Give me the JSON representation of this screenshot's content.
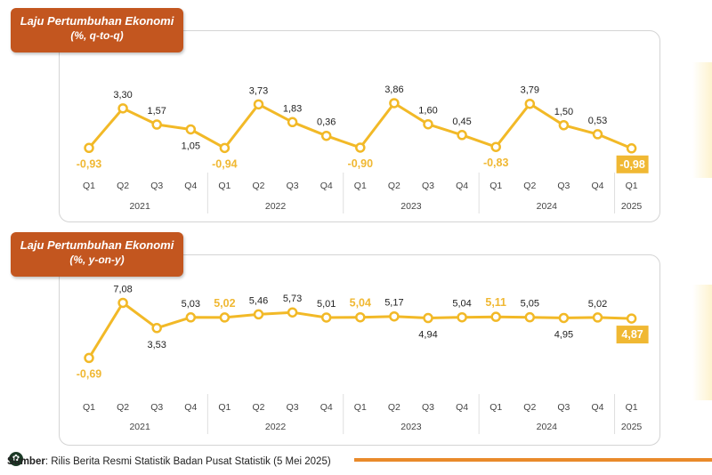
{
  "colors": {
    "line": "#f2b927",
    "highlight_fill": "#f0b833",
    "badge_bg": "#c3561f",
    "accent_line": "#e98a2a"
  },
  "source": {
    "label": "Sumber",
    "text": ": Rilis Berita Resmi Statistik Badan Pusat Statistik (5 Mei 2025)"
  },
  "chart_data": [
    {
      "type": "line",
      "title": "Laju Pertumbuhan Ekonomi",
      "subtitle": "(%, q-to-q)",
      "categories": [
        "Q1",
        "Q2",
        "Q3",
        "Q4",
        "Q1",
        "Q2",
        "Q3",
        "Q4",
        "Q1",
        "Q2",
        "Q3",
        "Q4",
        "Q1",
        "Q2",
        "Q3",
        "Q4",
        "Q1"
      ],
      "years": [
        "2021",
        "2022",
        "2023",
        "2024",
        "2025"
      ],
      "values": [
        -0.93,
        3.3,
        1.57,
        1.05,
        -0.94,
        3.73,
        1.83,
        0.36,
        -0.9,
        3.86,
        1.6,
        0.45,
        -0.83,
        3.79,
        1.5,
        0.53,
        -0.98
      ],
      "value_labels": [
        "-0,93",
        "3,30",
        "1,57",
        "1,05",
        "-0,94",
        "3,73",
        "1,83",
        "0,36",
        "-0,90",
        "3,86",
        "1,60",
        "0,45",
        "-0,83",
        "3,79",
        "1,50",
        "0,53",
        "-0,98"
      ],
      "label_pos": [
        "below",
        "above",
        "above",
        "below",
        "below",
        "above",
        "above",
        "above",
        "below",
        "above",
        "above",
        "above",
        "below",
        "above",
        "above",
        "above",
        "below"
      ],
      "label_style": [
        "orange",
        "normal",
        "normal",
        "normal",
        "orange",
        "normal",
        "normal",
        "normal",
        "orange",
        "normal",
        "normal",
        "normal",
        "orange",
        "normal",
        "normal",
        "normal",
        "box"
      ],
      "grid": false
    },
    {
      "type": "line",
      "title": "Laju Pertumbuhan Ekonomi",
      "subtitle": "(%, y-on-y)",
      "categories": [
        "Q1",
        "Q2",
        "Q3",
        "Q4",
        "Q1",
        "Q2",
        "Q3",
        "Q4",
        "Q1",
        "Q2",
        "Q3",
        "Q4",
        "Q1",
        "Q2",
        "Q3",
        "Q4",
        "Q1"
      ],
      "years": [
        "2021",
        "2022",
        "2023",
        "2024",
        "2025"
      ],
      "values": [
        -0.69,
        7.08,
        3.53,
        5.03,
        5.02,
        5.46,
        5.73,
        5.01,
        5.04,
        5.17,
        4.94,
        5.04,
        5.11,
        5.05,
        4.95,
        5.02,
        4.87
      ],
      "value_labels": [
        "-0,69",
        "7,08",
        "3,53",
        "5,03",
        "5,02",
        "5,46",
        "5,73",
        "5,01",
        "5,04",
        "5,17",
        "4,94",
        "5,04",
        "5,11",
        "5,05",
        "4,95",
        "5,02",
        "4,87"
      ],
      "label_pos": [
        "below",
        "above",
        "below",
        "above",
        "above",
        "above",
        "above",
        "above",
        "above",
        "above",
        "below",
        "above",
        "above",
        "above",
        "below",
        "above",
        "below"
      ],
      "label_style": [
        "orange",
        "normal",
        "normal",
        "normal",
        "orange",
        "normal",
        "normal",
        "normal",
        "orange",
        "normal",
        "normal",
        "normal",
        "orange",
        "normal",
        "normal",
        "normal",
        "box"
      ],
      "grid": false
    }
  ]
}
